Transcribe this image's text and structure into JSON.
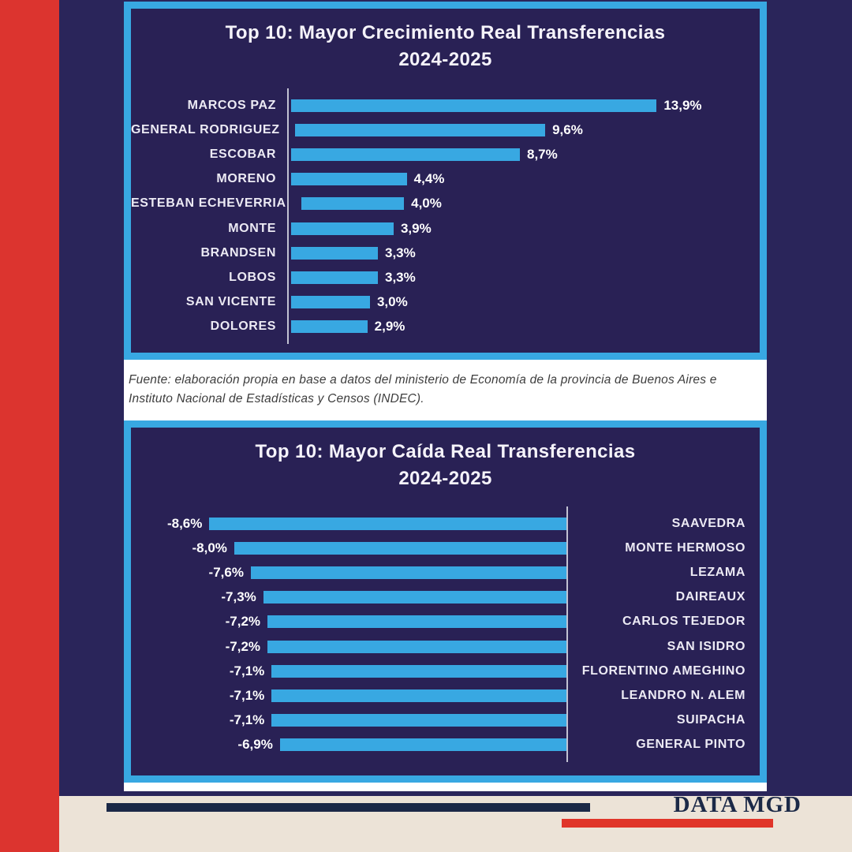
{
  "colors": {
    "page_navy": "#2a255a",
    "card_navy": "#292155",
    "accent_blue": "#38a8e2",
    "stripe_red": "#dc342f",
    "cream": "#ece3d7",
    "ink_navy": "#1b2947",
    "axis_gray": "#c2c2d2"
  },
  "chart_data": [
    {
      "type": "bar",
      "orientation": "horizontal",
      "direction": "positive-right",
      "title": "Top 10: Mayor Crecimiento Real Transferencias",
      "subtitle": "2024-2025",
      "categories": [
        "MARCOS PAZ",
        "GENERAL RODRIGUEZ",
        "ESCOBAR",
        "MORENO",
        "ESTEBAN ECHEVERRIA",
        "MONTE",
        "BRANDSEN",
        "LOBOS",
        "SAN VICENTE",
        "DOLORES"
      ],
      "values": [
        13.9,
        9.6,
        8.7,
        4.4,
        4.0,
        3.9,
        3.3,
        3.3,
        3.0,
        2.9
      ],
      "value_labels": [
        "13,9%",
        "9,6%",
        "8,7%",
        "4,4%",
        "4,0%",
        "3,9%",
        "3,3%",
        "3,3%",
        "3,0%",
        "2,9%"
      ],
      "xlim": [
        0,
        14
      ],
      "bar_color": "#38a8e2",
      "grid": false,
      "legend": false
    },
    {
      "type": "bar",
      "orientation": "horizontal",
      "direction": "negative-left",
      "title": "Top 10: Mayor Caída Real Transferencias",
      "subtitle": "2024-2025",
      "categories": [
        "SAAVEDRA",
        "MONTE HERMOSO",
        "LEZAMA",
        "DAIREAUX",
        "CARLOS TEJEDOR",
        "SAN ISIDRO",
        "FLORENTINO AMEGHINO",
        "LEANDRO N. ALEM",
        "SUIPACHA",
        "GENERAL PINTO"
      ],
      "values": [
        -8.6,
        -8.0,
        -7.6,
        -7.3,
        -7.2,
        -7.2,
        -7.1,
        -7.1,
        -7.1,
        -6.9
      ],
      "value_labels": [
        "-8,6%",
        "-8,0%",
        "-7,6%",
        "-7,3%",
        "-7,2%",
        "-7,2%",
        "-7,1%",
        "-7,1%",
        "-7,1%",
        "-6,9%"
      ],
      "xlim": [
        -9,
        0
      ],
      "bar_color": "#38a8e2",
      "grid": false,
      "legend": false
    }
  ],
  "source_note": {
    "line1": "Fuente: elaboración propia en base a datos del ministerio de Economía de la provincia de Buenos Aires e",
    "line2": "Instituto Nacional de Estadísticas y Censos (INDEC)."
  },
  "footer": {
    "brand": "DATA MGD"
  }
}
